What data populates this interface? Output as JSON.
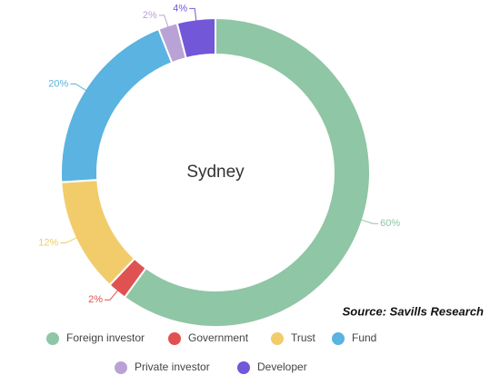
{
  "chart_data": {
    "type": "donut",
    "center_label": "Sydney",
    "annotation": "Source: Savills Research",
    "categories": [
      "Foreign investor",
      "Government",
      "Trust",
      "Fund",
      "Private investor",
      "Developer"
    ],
    "values": [
      60,
      2,
      12,
      20,
      2,
      4
    ],
    "value_labels": [
      "60%",
      "2%",
      "12%",
      "20%",
      "2%",
      "4%"
    ],
    "colors": [
      "#8fc6a5",
      "#e05252",
      "#f2cc6b",
      "#5ab3e0",
      "#b9a3d6",
      "#7357d9"
    ]
  }
}
